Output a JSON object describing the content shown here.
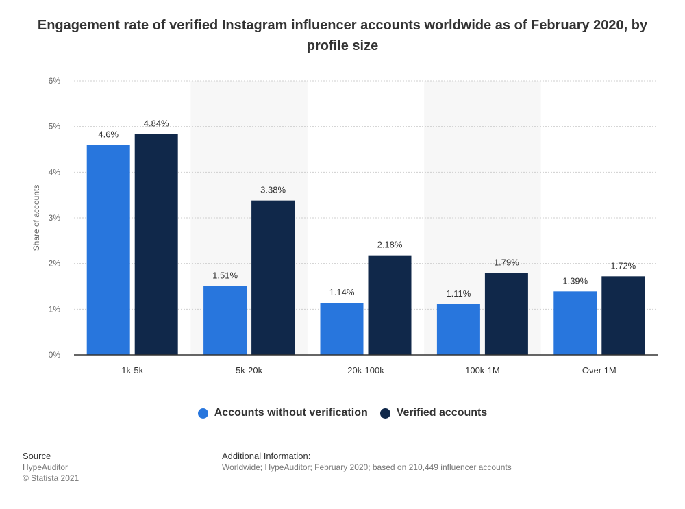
{
  "chart_data": {
    "type": "bar",
    "title": "Engagement rate of verified Instagram influencer accounts worldwide as of February 2020, by profile size",
    "xlabel": "",
    "ylabel": "Share of accounts",
    "ylim": [
      0,
      6
    ],
    "yticks": [
      "0%",
      "1%",
      "2%",
      "3%",
      "4%",
      "5%",
      "6%"
    ],
    "categories": [
      "1k-5k",
      "5k-20k",
      "20k-100k",
      "100k-1M",
      "Over 1M"
    ],
    "series": [
      {
        "name": "Accounts without verification",
        "color": "#2876dd",
        "values": [
          4.6,
          1.51,
          1.14,
          1.11,
          1.39
        ],
        "labels": [
          "4.6%",
          "1.51%",
          "1.14%",
          "1.11%",
          "1.39%"
        ]
      },
      {
        "name": "Verified accounts",
        "color": "#10284a",
        "values": [
          4.84,
          3.38,
          2.18,
          1.79,
          1.72
        ],
        "labels": [
          "4.84%",
          "3.38%",
          "2.18%",
          "1.79%",
          "1.72%"
        ]
      }
    ],
    "legend_position": "bottom",
    "grid": true
  },
  "footer": {
    "source_heading": "Source",
    "source_name": "HypeAuditor",
    "copyright": "© Statista 2021",
    "additional_heading": "Additional Information:",
    "additional_text": "Worldwide; HypeAuditor; February 2020; based on 210,449 influencer accounts"
  }
}
